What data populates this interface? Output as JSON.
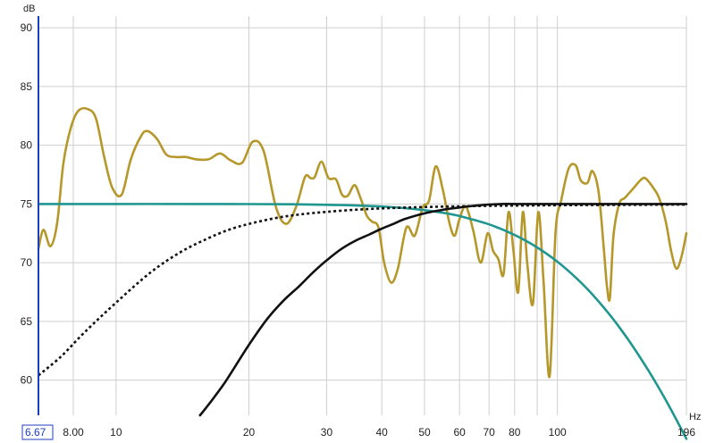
{
  "chart_data": {
    "type": "line",
    "x_scale": "log",
    "xlim": [
      6.67,
      196
    ],
    "ylim": [
      57,
      91
    ],
    "x_unit": "Hz",
    "y_unit": "dB",
    "x_origin_label": "6.67",
    "x_max_label": "196",
    "grid": true,
    "x_ticks": [
      {
        "value": 8,
        "label": "8.00"
      },
      {
        "value": 10,
        "label": "10"
      },
      {
        "value": 20,
        "label": "20"
      },
      {
        "value": 30,
        "label": "30"
      },
      {
        "value": 40,
        "label": "40"
      },
      {
        "value": 50,
        "label": "50"
      },
      {
        "value": 60,
        "label": "60"
      },
      {
        "value": 70,
        "label": "70"
      },
      {
        "value": 80,
        "label": "80"
      },
      {
        "value": 90,
        "label": ""
      },
      {
        "value": 100,
        "label": "100"
      }
    ],
    "y_ticks": [
      {
        "value": 60,
        "label": "60"
      },
      {
        "value": 65,
        "label": "65"
      },
      {
        "value": 70,
        "label": "70"
      },
      {
        "value": 75,
        "label": "75"
      },
      {
        "value": 80,
        "label": "80"
      },
      {
        "value": 85,
        "label": "85"
      },
      {
        "value": 90,
        "label": "90"
      }
    ],
    "series": [
      {
        "color": "#b5972a",
        "style": "solid",
        "x": [
          6.67,
          6.85,
          7.1,
          7.35,
          7.6,
          7.9,
          8.2,
          8.6,
          9.0,
          9.4,
          9.8,
          10.3,
          10.8,
          11.4,
          11.8,
          12.4,
          13.0,
          13.7,
          14.4,
          15.2,
          16.2,
          17.2,
          18.2,
          19.3,
          20.4,
          21.6,
          23.0,
          24.3,
          25.6,
          26.8,
          27.6,
          28.2,
          29.2,
          30.3,
          31.5,
          32.5,
          33.5,
          34.7,
          35.8,
          37.0,
          38.0,
          39.3,
          40.5,
          42.0,
          43.5,
          45.5,
          47.5,
          49.5,
          51.2,
          53.0,
          55.0,
          57.0,
          58.5,
          60.0,
          62.0,
          64.5,
          67.0,
          69.5,
          71.5,
          73.5,
          75.5,
          77.5,
          79.5,
          81.5,
          83.5,
          85.5,
          88.0,
          90.5,
          93.0,
          96.0,
          99.0,
          102.0,
          106.0,
          110.0,
          113.0,
          117.0,
          120.0,
          124.0,
          127.5,
          129.5,
          131.5,
          134.0,
          138.0,
          142.0,
          146.0,
          150.0,
          154.0,
          158.0,
          164.0,
          170.0,
          176.0,
          181.0,
          186.0,
          191.0,
          196.0
        ],
        "y": [
          71.2,
          72.8,
          71.4,
          73.3,
          78.5,
          81.5,
          82.9,
          83.1,
          82.3,
          79.0,
          76.4,
          75.8,
          78.8,
          80.8,
          81.2,
          80.5,
          79.2,
          79.0,
          79.0,
          78.8,
          78.8,
          79.3,
          78.7,
          78.5,
          80.3,
          79.5,
          74.8,
          73.3,
          74.8,
          77.3,
          77.2,
          77.3,
          78.6,
          77.2,
          77.1,
          75.8,
          75.7,
          76.6,
          75.5,
          74.0,
          73.5,
          73.0,
          70.0,
          68.3,
          69.5,
          73.0,
          72.3,
          74.7,
          75.3,
          78.2,
          76.2,
          73.3,
          72.3,
          73.7,
          74.8,
          72.7,
          70.0,
          72.5,
          71.0,
          70.3,
          69.0,
          74.3,
          71.0,
          67.5,
          74.3,
          69.8,
          66.5,
          74.3,
          68.5,
          60.3,
          72.5,
          75.3,
          78.0,
          78.3,
          77.0,
          76.8,
          77.8,
          76.0,
          71.0,
          68.0,
          67.0,
          72.3,
          75.0,
          75.5,
          76.0,
          76.5,
          77.0,
          77.2,
          76.5,
          75.5,
          73.5,
          71.0,
          69.5,
          70.5,
          72.5
        ]
      },
      {
        "color": "#1f9690",
        "style": "solid",
        "x": [
          6.67,
          10,
          15,
          20,
          25,
          30,
          35,
          40,
          45,
          50,
          55,
          60,
          70,
          80,
          90,
          100,
          110,
          120,
          130,
          140,
          150,
          160,
          170,
          180,
          196
        ],
        "y": [
          75.0,
          75.0,
          75.0,
          74.99,
          74.97,
          74.93,
          74.87,
          74.78,
          74.65,
          74.47,
          74.25,
          73.97,
          73.26,
          72.36,
          71.29,
          70.08,
          68.74,
          67.3,
          65.78,
          64.2,
          62.58,
          60.94,
          59.29,
          57.64,
          55.0
        ]
      },
      {
        "color": "#111111",
        "style": "dotted",
        "x": [
          6.67,
          7.5,
          8.5,
          10,
          12,
          14,
          16,
          18,
          20,
          23,
          26,
          30,
          35,
          40,
          45,
          50,
          60,
          70,
          80,
          100,
          140,
          196
        ],
        "y": [
          60.4,
          62.0,
          64.1,
          66.6,
          69.2,
          70.9,
          72.0,
          72.8,
          73.3,
          73.8,
          74.1,
          74.33,
          74.51,
          74.62,
          74.69,
          74.74,
          74.8,
          74.84,
          74.86,
          74.89,
          74.92,
          74.95
        ]
      },
      {
        "color": "#111111",
        "style": "solid",
        "x": [
          15.5,
          16.5,
          17.5,
          18.5,
          20.0,
          22.0,
          24.0,
          26.0,
          28.0,
          30.0,
          32.5,
          35.0,
          37.5,
          40.0,
          42.5,
          45.0,
          50.0,
          55.0,
          60.0,
          65.0,
          70.0,
          75.0,
          80.0,
          100.0,
          150.0,
          196.0
        ],
        "y": [
          57.0,
          58.3,
          59.6,
          61.0,
          63.0,
          65.2,
          66.8,
          68.0,
          69.2,
          70.2,
          71.2,
          71.9,
          72.4,
          72.9,
          73.3,
          73.7,
          74.2,
          74.5,
          74.7,
          74.85,
          74.95,
          75.0,
          75.0,
          75.0,
          75.0,
          75.0
        ]
      }
    ]
  }
}
